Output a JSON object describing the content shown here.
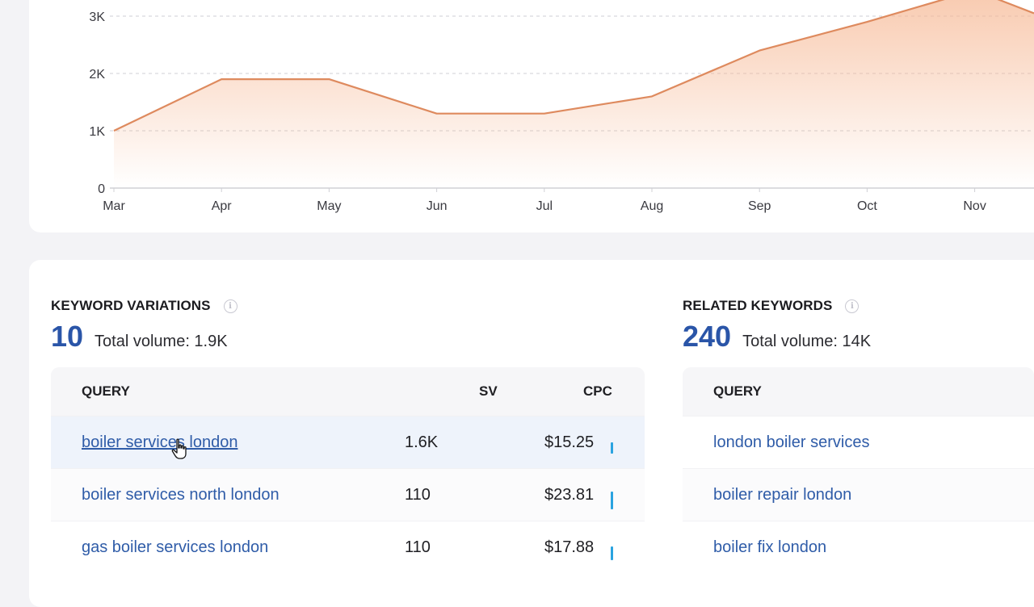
{
  "chart_data": {
    "type": "area",
    "x": [
      "Mar",
      "Apr",
      "May",
      "Jun",
      "Jul",
      "Aug",
      "Sep",
      "Oct",
      "Nov"
    ],
    "series": [
      {
        "values": [
          1000,
          1900,
          1900,
          1300,
          1300,
          1600,
          2400,
          2900,
          3450
        ]
      }
    ],
    "y_ticks": [
      "0",
      "1K",
      "2K",
      "3K"
    ],
    "ylim": [
      0,
      3300
    ],
    "grid": true,
    "colors": {
      "line": "#de8a5e",
      "fill": "#f6b894",
      "grid": "#cfcfd4",
      "axis": "#d0d0d5"
    }
  },
  "keyword_variations": {
    "title": "KEYWORD VARIATIONS",
    "count": "10",
    "total_volume": "Total volume: 1.9K",
    "headers": {
      "query": "QUERY",
      "sv": "SV",
      "cpc": "CPC"
    },
    "rows": [
      {
        "query": "boiler services london",
        "sv": "1.6K",
        "cpc": "$15.25",
        "cpc_level": 0.55
      },
      {
        "query": "boiler services north london",
        "sv": "110",
        "cpc": "$23.81",
        "cpc_level": 0.85
      },
      {
        "query": "gas boiler services london",
        "sv": "110",
        "cpc": "$17.88",
        "cpc_level": 0.65
      }
    ]
  },
  "related_keywords": {
    "title": "RELATED KEYWORDS",
    "count": "240",
    "total_volume": "Total volume: 14K",
    "headers": {
      "query": "QUERY"
    },
    "rows": [
      {
        "query": "london boiler services"
      },
      {
        "query": "boiler repair london"
      },
      {
        "query": "boiler fix london"
      }
    ]
  },
  "colors": {
    "accent": "#2a55a8",
    "link": "#2f5ca8",
    "cpc_bar": "#2aa3e0"
  }
}
